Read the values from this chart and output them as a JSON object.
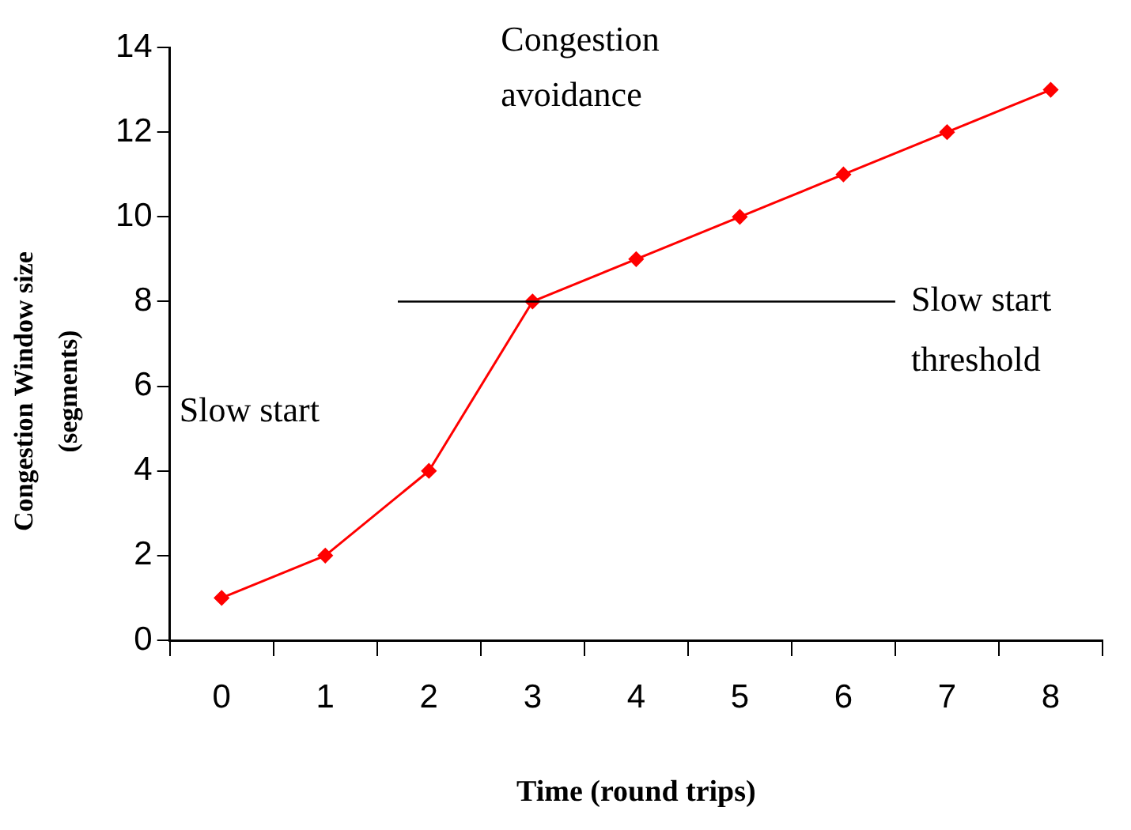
{
  "chart_data": {
    "type": "line",
    "xlabel": "Time (round trips)",
    "ylabel": "Congestion Window size (segments)",
    "categories": [
      "0",
      "1",
      "2",
      "3",
      "4",
      "5",
      "6",
      "7",
      "8"
    ],
    "series": [
      {
        "color": "#ff0000",
        "values": [
          1,
          2,
          4,
          8,
          9,
          10,
          11,
          12,
          13
        ]
      }
    ],
    "ylim": [
      0,
      14
    ],
    "yticks": [
      0,
      2,
      4,
      6,
      8,
      10,
      12,
      14
    ],
    "ref_lines": [
      {
        "axis": "y",
        "value": 8,
        "label": "Slow start threshold",
        "color": "#000000"
      }
    ],
    "annotations": [
      "Congestion avoidance",
      "Slow start"
    ],
    "marker": "diamond",
    "grid": false,
    "legend": false
  }
}
